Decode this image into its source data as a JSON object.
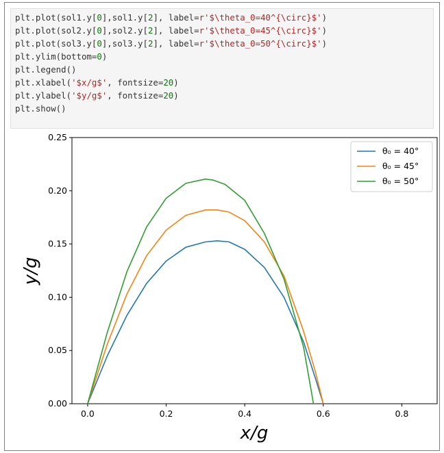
{
  "code_lines": [
    [
      {
        "t": "plt.plot(sol1.y[",
        "c": "kw"
      },
      {
        "t": "0",
        "c": "num"
      },
      {
        "t": "],sol1.y[",
        "c": "kw"
      },
      {
        "t": "2",
        "c": "num"
      },
      {
        "t": "], label=",
        "c": "kw"
      },
      {
        "t": "r'$\\theta_0=40^{\\circ}$'",
        "c": "str"
      },
      {
        "t": ")",
        "c": "kw"
      }
    ],
    [
      {
        "t": "plt.plot(sol2.y[",
        "c": "kw"
      },
      {
        "t": "0",
        "c": "num"
      },
      {
        "t": "],sol2.y[",
        "c": "kw"
      },
      {
        "t": "2",
        "c": "num"
      },
      {
        "t": "], label=",
        "c": "kw"
      },
      {
        "t": "r'$\\theta_0=45^{\\circ}$'",
        "c": "str"
      },
      {
        "t": ")",
        "c": "kw"
      }
    ],
    [
      {
        "t": "plt.plot(sol3.y[",
        "c": "kw"
      },
      {
        "t": "0",
        "c": "num"
      },
      {
        "t": "],sol3.y[",
        "c": "kw"
      },
      {
        "t": "2",
        "c": "num"
      },
      {
        "t": "], label=",
        "c": "kw"
      },
      {
        "t": "r'$\\theta_0=50^{\\circ}$'",
        "c": "str"
      },
      {
        "t": ")",
        "c": "kw"
      }
    ],
    [
      {
        "t": "plt.ylim(bottom=",
        "c": "kw"
      },
      {
        "t": "0",
        "c": "num"
      },
      {
        "t": ")",
        "c": "kw"
      }
    ],
    [
      {
        "t": "plt.legend()",
        "c": "kw"
      }
    ],
    [
      {
        "t": "plt.xlabel(",
        "c": "kw"
      },
      {
        "t": "'$x/g$'",
        "c": "str"
      },
      {
        "t": ", fontsize=",
        "c": "kw"
      },
      {
        "t": "20",
        "c": "num"
      },
      {
        "t": ")",
        "c": "kw"
      }
    ],
    [
      {
        "t": "plt.ylabel(",
        "c": "kw"
      },
      {
        "t": "'$y/g$'",
        "c": "str"
      },
      {
        "t": ", fontsize=",
        "c": "kw"
      },
      {
        "t": "20",
        "c": "num"
      },
      {
        "t": ")",
        "c": "kw"
      }
    ],
    [
      {
        "t": "plt.show()",
        "c": "kw"
      }
    ]
  ],
  "chart_data": {
    "type": "line",
    "title": "",
    "xlabel": "x/g",
    "ylabel": "y/g",
    "xlim": [
      -0.04,
      0.89
    ],
    "ylim": [
      0.0,
      0.25
    ],
    "xticks": [
      0.0,
      0.2,
      0.4,
      0.6,
      0.8
    ],
    "xtick_labels": [
      "0.0",
      "0.2",
      "0.4",
      "0.6",
      "0.8"
    ],
    "yticks": [
      0.0,
      0.05,
      0.1,
      0.15,
      0.2,
      0.25
    ],
    "ytick_labels": [
      "0.00",
      "0.05",
      "0.10",
      "0.15",
      "0.20",
      "0.25"
    ],
    "grid": false,
    "legend_position": "top-right",
    "series": [
      {
        "name": "θ₀ = 40°",
        "color": "#1f77b4",
        "x": [
          0.0,
          0.05,
          0.1,
          0.15,
          0.2,
          0.25,
          0.3,
          0.33,
          0.36,
          0.4,
          0.45,
          0.5,
          0.55,
          0.58,
          0.6
        ],
        "y": [
          0.0,
          0.045,
          0.083,
          0.113,
          0.134,
          0.147,
          0.152,
          0.153,
          0.152,
          0.145,
          0.128,
          0.1,
          0.058,
          0.024,
          0.0
        ]
      },
      {
        "name": "θ₀ = 45°",
        "color": "#ff7f0e",
        "x": [
          0.0,
          0.05,
          0.1,
          0.15,
          0.2,
          0.25,
          0.3,
          0.33,
          0.36,
          0.4,
          0.45,
          0.5,
          0.55,
          0.58,
          0.6
        ],
        "y": [
          0.0,
          0.056,
          0.103,
          0.139,
          0.163,
          0.177,
          0.182,
          0.182,
          0.18,
          0.172,
          0.152,
          0.12,
          0.068,
          0.03,
          0.0
        ]
      },
      {
        "name": "θ₀ = 50°",
        "color": "#2ca02c",
        "x": [
          0.0,
          0.05,
          0.1,
          0.15,
          0.2,
          0.25,
          0.3,
          0.32,
          0.35,
          0.4,
          0.45,
          0.5,
          0.55,
          0.575
        ],
        "y": [
          0.0,
          0.067,
          0.124,
          0.166,
          0.193,
          0.207,
          0.211,
          0.21,
          0.206,
          0.191,
          0.16,
          0.117,
          0.053,
          0.0
        ]
      }
    ]
  }
}
